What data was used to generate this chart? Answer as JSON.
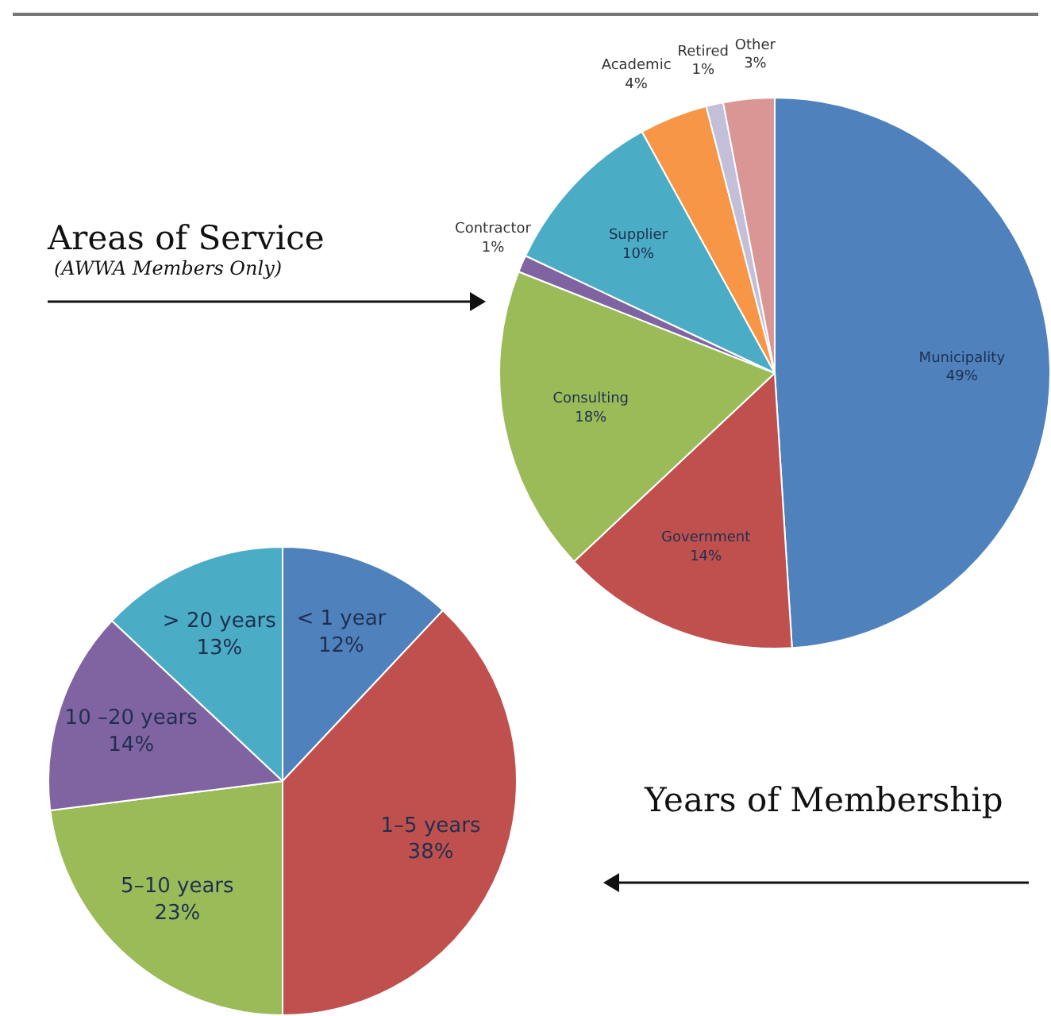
{
  "chart_data": [
    {
      "type": "pie",
      "title": "Areas of Service",
      "subtitle": "(AWWA Members Only)",
      "categories": [
        "Municipality",
        "Government",
        "Consulting",
        "Contractor",
        "Supplier",
        "Academic",
        "Retired",
        "Other"
      ],
      "values": [
        49,
        14,
        18,
        1,
        10,
        4,
        1,
        3
      ],
      "colors": [
        "#4f81bd",
        "#c0504d",
        "#9bbb59",
        "#8064a2",
        "#4bacc6",
        "#f79646",
        "#c3bfd9",
        "#d99694"
      ],
      "value_labels": [
        "49%",
        "14%",
        "18%",
        "1%",
        "10%",
        "4%",
        "1%",
        "3%"
      ]
    },
    {
      "type": "pie",
      "title": "Years of Membership",
      "categories": [
        "< 1 year",
        "1–5 years",
        "5–10 years",
        "10 –20 years",
        "> 20 years"
      ],
      "values": [
        12,
        38,
        23,
        14,
        13
      ],
      "colors": [
        "#4f81bd",
        "#c0504d",
        "#9bbb59",
        "#8064a2",
        "#4bacc6"
      ],
      "value_labels": [
        "12%",
        "38%",
        "23%",
        "14%",
        "13%"
      ]
    }
  ]
}
